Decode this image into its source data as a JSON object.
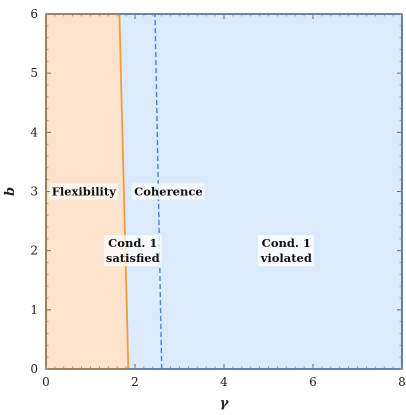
{
  "chart_data": {
    "type": "area",
    "xlabel": "γ",
    "ylabel": "b",
    "xlim": [
      0,
      8
    ],
    "ylim": [
      0,
      6
    ],
    "x_ticks": [
      "0",
      "2",
      "4",
      "6",
      "8"
    ],
    "y_ticks": [
      "0",
      "1",
      "2",
      "3",
      "4",
      "5",
      "6"
    ],
    "grid": false,
    "regions": [
      {
        "label": "Flexibility",
        "fill": "#fde3cc",
        "edge": "#f39b3c",
        "boundary": [
          [
            0,
            0
          ],
          [
            1.85,
            0
          ],
          [
            1.65,
            6
          ],
          [
            0,
            6
          ]
        ]
      },
      {
        "label": "Coherence",
        "fill": "#dcebfc",
        "edge": "#3f86e0",
        "boundary": [
          [
            0,
            0
          ],
          [
            8,
            0
          ],
          [
            8,
            6
          ],
          [
            0,
            6
          ]
        ]
      }
    ],
    "dashed_boundary": {
      "color": "#3f86e0",
      "points": [
        [
          2.6,
          0
        ],
        [
          2.45,
          6
        ]
      ]
    },
    "annotations": [
      {
        "lines": [
          "Flexibility"
        ],
        "x": 0.85,
        "y": 3.0
      },
      {
        "lines": [
          "Coherence"
        ],
        "x": 2.75,
        "y": 3.0
      },
      {
        "lines": [
          "Cond. 1",
          "satisfied"
        ],
        "x": 1.95,
        "y": 2.0
      },
      {
        "lines": [
          "Cond. 1",
          "violated"
        ],
        "x": 5.4,
        "y": 2.0
      }
    ]
  }
}
